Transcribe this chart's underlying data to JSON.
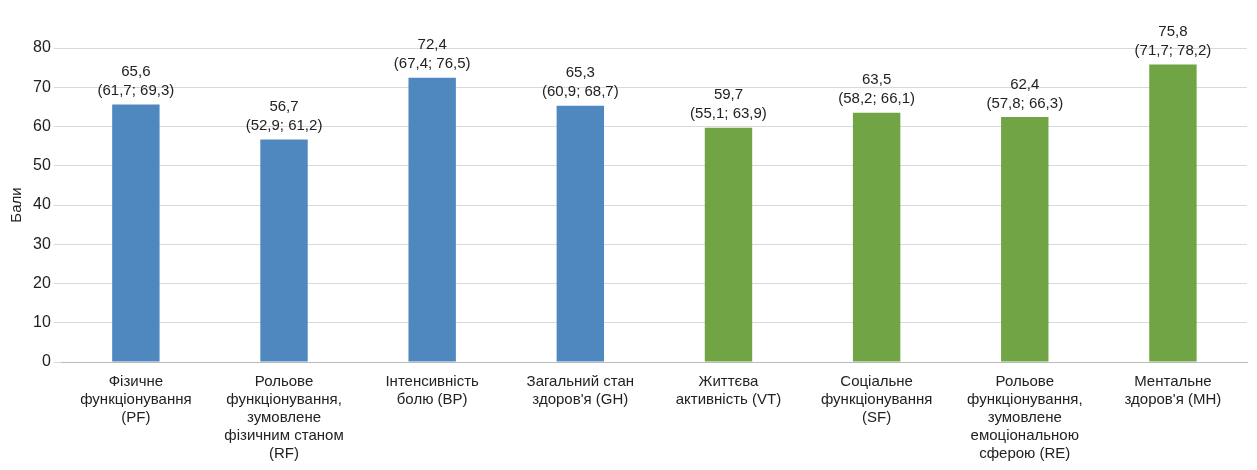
{
  "chart_data": {
    "type": "bar",
    "ylabel": "Бали",
    "categories": [
      "Фізичне функціонування (PF)",
      "Рольове функціонування, зумовлене фізичним станом (RF)",
      "Інтенсивність болю (BP)",
      "Загальний стан здоров'я (GH)",
      "Життєва активність (VT)",
      "Соціальне функціонування (SF)",
      "Рольове функціонування, зумовлене емоціональною сферою (RE)",
      "Ментальне здоров'я (MH)"
    ],
    "values": [
      65.6,
      56.7,
      72.4,
      65.3,
      59.7,
      63.5,
      62.4,
      75.8
    ],
    "colors": [
      "#4f88bf",
      "#4f88bf",
      "#4f88bf",
      "#4f88bf",
      "#70a444",
      "#70a444",
      "#70a444",
      "#70a444"
    ],
    "value_labels": [
      "65,6\n(61,7; 69,3)",
      "56,7\n(52,9; 61,2)",
      "72,4\n(67,4; 76,5)",
      "65,3\n(60,9; 68,7)",
      "59,7\n(55,1; 63,9)",
      "63,5\n(58,2; 66,1)",
      "62,4\n(57,8; 66,3)",
      "75,8\n(71,7; 78,2)"
    ],
    "ylim": [
      0,
      80
    ],
    "yticks": [
      0,
      10,
      20,
      30,
      40,
      50,
      60,
      70,
      80
    ],
    "grid": "y",
    "legend": false
  }
}
